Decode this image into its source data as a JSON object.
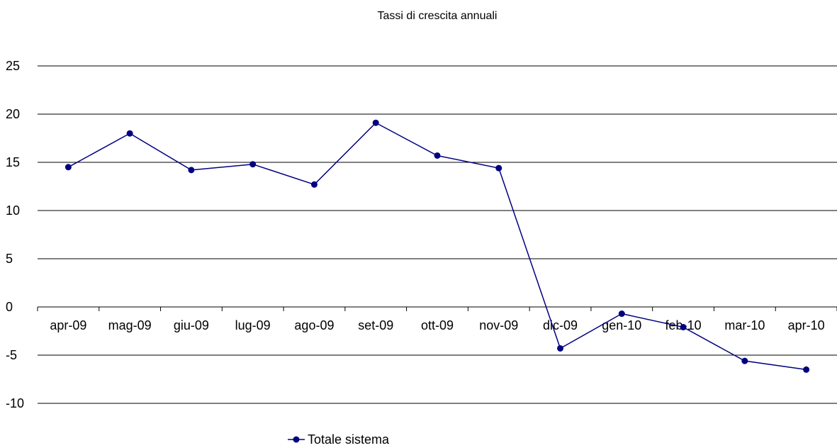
{
  "chart_data": {
    "type": "line",
    "title": "Tassi di crescita annuali",
    "xlabel": "",
    "ylabel": "",
    "categories": [
      "apr-09",
      "mag-09",
      "giu-09",
      "lug-09",
      "ago-09",
      "set-09",
      "ott-09",
      "nov-09",
      "dic-09",
      "gen-10",
      "feb-10",
      "mar-10",
      "apr-10"
    ],
    "series": [
      {
        "name": "Totale sistema",
        "values": [
          14.5,
          18.0,
          14.2,
          14.8,
          12.7,
          19.1,
          15.7,
          14.4,
          -4.3,
          -0.7,
          -2.1,
          -5.6,
          -6.5
        ]
      }
    ],
    "ylim": [
      -10,
      25
    ],
    "yticks": [
      -10,
      -5,
      0,
      5,
      10,
      15,
      20,
      25
    ],
    "grid": true,
    "legend": "bottom-center",
    "series_color": "#000080"
  }
}
